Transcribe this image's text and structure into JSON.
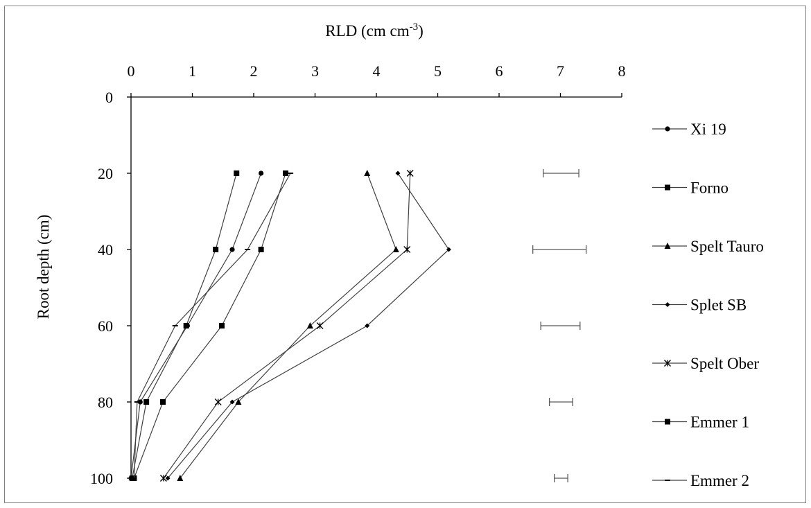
{
  "chart_data": {
    "type": "line",
    "title": "",
    "xlabel": {
      "base": "RLD (cm cm",
      "sup": "-3",
      "close": ")"
    },
    "ylabel": "Root depth (cm)",
    "xlim": [
      0,
      8
    ],
    "ylim": [
      0,
      100
    ],
    "x_ticks": [
      "0",
      "1",
      "2",
      "3",
      "4",
      "5",
      "6",
      "7",
      "8"
    ],
    "y_ticks": [
      "0",
      "20",
      "40",
      "60",
      "80",
      "100"
    ],
    "legend_position": "right",
    "depths": [
      20,
      40,
      60,
      80,
      100
    ],
    "series": [
      {
        "name": "Xi 19",
        "marker": "circle",
        "x": [
          2.12,
          1.65,
          0.92,
          0.15,
          0.0
        ]
      },
      {
        "name": "Forno",
        "marker": "square",
        "x": [
          2.52,
          2.12,
          1.48,
          0.52,
          0.05
        ]
      },
      {
        "name": "Spelt Tauro",
        "marker": "triangle",
        "x": [
          3.85,
          4.32,
          2.92,
          1.75,
          0.8
        ]
      },
      {
        "name": "Splet SB",
        "marker": "diamond",
        "x": [
          4.35,
          5.18,
          3.85,
          1.65,
          0.6
        ]
      },
      {
        "name": "Spelt Ober",
        "marker": "star",
        "x": [
          4.55,
          4.5,
          3.08,
          1.42,
          0.53
        ]
      },
      {
        "name": "Emmer 1",
        "marker": "square",
        "x": [
          1.72,
          1.38,
          0.9,
          0.25,
          0.02
        ]
      },
      {
        "name": "Emmer 2",
        "marker": "dash",
        "x": [
          2.6,
          1.9,
          0.72,
          0.1,
          0.05
        ]
      }
    ],
    "error_bars": [
      {
        "depth": 20,
        "low": 6.72,
        "high": 7.3
      },
      {
        "depth": 40,
        "low": 6.55,
        "high": 7.42
      },
      {
        "depth": 60,
        "low": 6.68,
        "high": 7.32
      },
      {
        "depth": 80,
        "low": 6.82,
        "high": 7.2
      },
      {
        "depth": 100,
        "low": 6.9,
        "high": 7.12
      }
    ],
    "colors": {
      "line": "#404040",
      "marker": "#000000",
      "error_bar": "#595959",
      "axis": "#000000"
    }
  }
}
